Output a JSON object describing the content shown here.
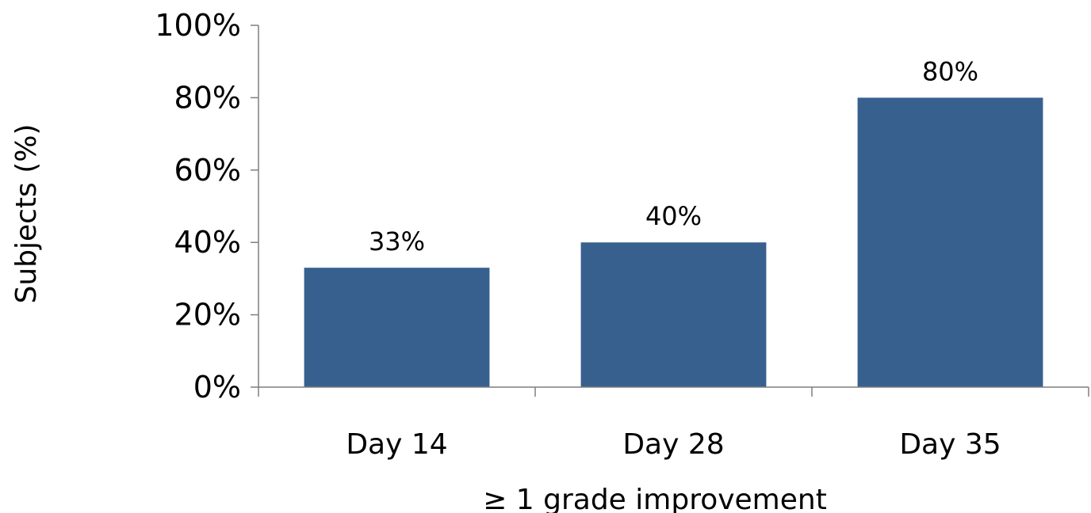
{
  "chart_data": {
    "type": "bar",
    "categories": [
      "Day 14",
      "Day 28",
      "Day 35"
    ],
    "values": [
      33,
      40,
      80
    ],
    "data_labels": [
      "33%",
      "40%",
      "80%"
    ],
    "xlabel": "≥ 1 grade improvement",
    "ylabel": "Subjects (%)",
    "ylim": [
      0,
      100
    ],
    "y_ticks": [
      0,
      20,
      40,
      60,
      80,
      100
    ],
    "y_tick_labels": [
      "0%",
      "20%",
      "40%",
      "60%",
      "80%",
      "100%"
    ],
    "grid": false,
    "legend": false,
    "colors": {
      "bar": "#37608f",
      "axis": "#7f7f7f",
      "text": "#000000"
    }
  }
}
